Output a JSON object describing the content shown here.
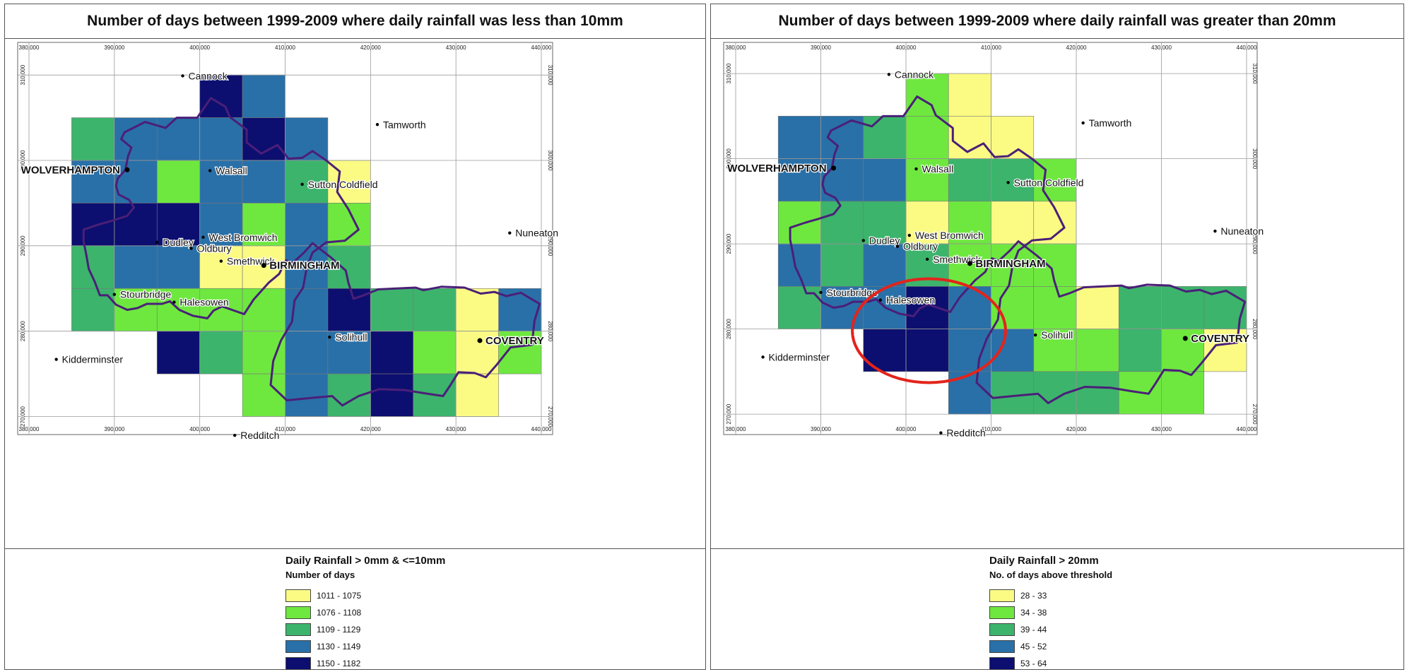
{
  "panels": [
    {
      "title": "Number of days between 1999-2009 where daily rainfall was less than 10mm",
      "legend": {
        "title": "Daily Rainfall > 0mm & <=10mm",
        "subtitle": "Number of days",
        "classes": [
          {
            "label": "1011 - 1075",
            "color": "#fbfb84"
          },
          {
            "label": "1076 - 1108",
            "color": "#6ee83f"
          },
          {
            "label": "1109 - 1129",
            "color": "#3cb46c"
          },
          {
            "label": "1130 - 1149",
            "color": "#2970a8"
          },
          {
            "label": "1150 - 1182",
            "color": "#0c0f6f"
          }
        ]
      },
      "cells": [
        {
          "e": 400,
          "n": 305,
          "c": 4
        },
        {
          "e": 405,
          "n": 305,
          "c": 3
        },
        {
          "e": 385,
          "n": 300,
          "c": 2
        },
        {
          "e": 390,
          "n": 300,
          "c": 3
        },
        {
          "e": 395,
          "n": 300,
          "c": 3
        },
        {
          "e": 400,
          "n": 300,
          "c": 3
        },
        {
          "e": 405,
          "n": 300,
          "c": 4
        },
        {
          "e": 410,
          "n": 300,
          "c": 3
        },
        {
          "e": 385,
          "n": 295,
          "c": 3
        },
        {
          "e": 390,
          "n": 295,
          "c": 3
        },
        {
          "e": 395,
          "n": 295,
          "c": 1
        },
        {
          "e": 400,
          "n": 295,
          "c": 3
        },
        {
          "e": 405,
          "n": 295,
          "c": 3
        },
        {
          "e": 410,
          "n": 295,
          "c": 2
        },
        {
          "e": 415,
          "n": 295,
          "c": 0
        },
        {
          "e": 385,
          "n": 290,
          "c": 4
        },
        {
          "e": 390,
          "n": 290,
          "c": 4
        },
        {
          "e": 395,
          "n": 290,
          "c": 4
        },
        {
          "e": 400,
          "n": 290,
          "c": 3
        },
        {
          "e": 405,
          "n": 290,
          "c": 1
        },
        {
          "e": 410,
          "n": 290,
          "c": 3
        },
        {
          "e": 415,
          "n": 290,
          "c": 1
        },
        {
          "e": 385,
          "n": 285,
          "c": 2
        },
        {
          "e": 390,
          "n": 285,
          "c": 3
        },
        {
          "e": 395,
          "n": 285,
          "c": 3
        },
        {
          "e": 400,
          "n": 285,
          "c": 0
        },
        {
          "e": 405,
          "n": 285,
          "c": 0
        },
        {
          "e": 410,
          "n": 285,
          "c": 3
        },
        {
          "e": 415,
          "n": 285,
          "c": 2
        },
        {
          "e": 385,
          "n": 280,
          "c": 2
        },
        {
          "e": 390,
          "n": 280,
          "c": 1
        },
        {
          "e": 395,
          "n": 280,
          "c": 1
        },
        {
          "e": 400,
          "n": 280,
          "c": 1
        },
        {
          "e": 405,
          "n": 280,
          "c": 1
        },
        {
          "e": 410,
          "n": 280,
          "c": 3
        },
        {
          "e": 415,
          "n": 280,
          "c": 4
        },
        {
          "e": 420,
          "n": 280,
          "c": 2
        },
        {
          "e": 425,
          "n": 280,
          "c": 2
        },
        {
          "e": 430,
          "n": 280,
          "c": 0
        },
        {
          "e": 435,
          "n": 280,
          "c": 3
        },
        {
          "e": 395,
          "n": 275,
          "c": 4
        },
        {
          "e": 400,
          "n": 275,
          "c": 2
        },
        {
          "e": 405,
          "n": 275,
          "c": 1
        },
        {
          "e": 410,
          "n": 275,
          "c": 3
        },
        {
          "e": 415,
          "n": 275,
          "c": 3
        },
        {
          "e": 420,
          "n": 275,
          "c": 4
        },
        {
          "e": 425,
          "n": 275,
          "c": 1
        },
        {
          "e": 430,
          "n": 275,
          "c": 0
        },
        {
          "e": 435,
          "n": 275,
          "c": 1
        },
        {
          "e": 405,
          "n": 270,
          "c": 1
        },
        {
          "e": 410,
          "n": 270,
          "c": 3
        },
        {
          "e": 415,
          "n": 270,
          "c": 2
        },
        {
          "e": 420,
          "n": 270,
          "c": 4
        },
        {
          "e": 425,
          "n": 270,
          "c": 2
        },
        {
          "e": 430,
          "n": 270,
          "c": 0
        }
      ],
      "highlight": false
    },
    {
      "title": "Number of days between 1999-2009 where daily rainfall was greater than 20mm",
      "legend": {
        "title": "Daily Rainfall > 20mm",
        "subtitle": "No. of days above threshold",
        "classes": [
          {
            "label": "28 - 33",
            "color": "#fbfb84"
          },
          {
            "label": "34 - 38",
            "color": "#6ee83f"
          },
          {
            "label": "39 - 44",
            "color": "#3cb46c"
          },
          {
            "label": "45 - 52",
            "color": "#2970a8"
          },
          {
            "label": "53 - 64",
            "color": "#0c0f6f"
          }
        ]
      },
      "cells": [
        {
          "e": 400,
          "n": 305,
          "c": 1
        },
        {
          "e": 405,
          "n": 305,
          "c": 0
        },
        {
          "e": 385,
          "n": 300,
          "c": 3
        },
        {
          "e": 390,
          "n": 300,
          "c": 3
        },
        {
          "e": 395,
          "n": 300,
          "c": 2
        },
        {
          "e": 400,
          "n": 300,
          "c": 1
        },
        {
          "e": 405,
          "n": 300,
          "c": 0
        },
        {
          "e": 410,
          "n": 300,
          "c": 0
        },
        {
          "e": 385,
          "n": 295,
          "c": 3
        },
        {
          "e": 390,
          "n": 295,
          "c": 3
        },
        {
          "e": 395,
          "n": 295,
          "c": 3
        },
        {
          "e": 400,
          "n": 295,
          "c": 1
        },
        {
          "e": 405,
          "n": 295,
          "c": 2
        },
        {
          "e": 410,
          "n": 295,
          "c": 2
        },
        {
          "e": 415,
          "n": 295,
          "c": 1
        },
        {
          "e": 385,
          "n": 290,
          "c": 1
        },
        {
          "e": 390,
          "n": 290,
          "c": 2
        },
        {
          "e": 395,
          "n": 290,
          "c": 2
        },
        {
          "e": 400,
          "n": 290,
          "c": 0
        },
        {
          "e": 405,
          "n": 290,
          "c": 1
        },
        {
          "e": 410,
          "n": 290,
          "c": 0
        },
        {
          "e": 415,
          "n": 290,
          "c": 0
        },
        {
          "e": 385,
          "n": 285,
          "c": 3
        },
        {
          "e": 390,
          "n": 285,
          "c": 2
        },
        {
          "e": 395,
          "n": 285,
          "c": 3
        },
        {
          "e": 400,
          "n": 285,
          "c": 2
        },
        {
          "e": 405,
          "n": 285,
          "c": 1
        },
        {
          "e": 410,
          "n": 285,
          "c": 1
        },
        {
          "e": 415,
          "n": 285,
          "c": 1
        },
        {
          "e": 385,
          "n": 280,
          "c": 2
        },
        {
          "e": 390,
          "n": 280,
          "c": 3
        },
        {
          "e": 395,
          "n": 280,
          "c": 3
        },
        {
          "e": 400,
          "n": 280,
          "c": 4
        },
        {
          "e": 405,
          "n": 280,
          "c": 3
        },
        {
          "e": 410,
          "n": 280,
          "c": 1
        },
        {
          "e": 415,
          "n": 280,
          "c": 1
        },
        {
          "e": 420,
          "n": 280,
          "c": 0
        },
        {
          "e": 425,
          "n": 280,
          "c": 2
        },
        {
          "e": 430,
          "n": 280,
          "c": 2
        },
        {
          "e": 435,
          "n": 280,
          "c": 2
        },
        {
          "e": 395,
          "n": 275,
          "c": 4
        },
        {
          "e": 400,
          "n": 275,
          "c": 4
        },
        {
          "e": 405,
          "n": 275,
          "c": 3
        },
        {
          "e": 410,
          "n": 275,
          "c": 3
        },
        {
          "e": 415,
          "n": 275,
          "c": 1
        },
        {
          "e": 420,
          "n": 275,
          "c": 1
        },
        {
          "e": 425,
          "n": 275,
          "c": 2
        },
        {
          "e": 430,
          "n": 275,
          "c": 1
        },
        {
          "e": 435,
          "n": 275,
          "c": 0
        },
        {
          "e": 405,
          "n": 270,
          "c": 3
        },
        {
          "e": 410,
          "n": 270,
          "c": 2
        },
        {
          "e": 415,
          "n": 270,
          "c": 2
        },
        {
          "e": 420,
          "n": 270,
          "c": 2
        },
        {
          "e": 425,
          "n": 270,
          "c": 1
        },
        {
          "e": 430,
          "n": 270,
          "c": 1
        }
      ],
      "highlight": true
    }
  ],
  "axes": {
    "eastings": [
      "380,000",
      "390,000",
      "400,000",
      "410,000",
      "420,000",
      "430,000",
      "440,000"
    ],
    "northings": [
      "310,000",
      "300,000",
      "290,000",
      "280,000",
      "270,000"
    ]
  },
  "places": [
    {
      "name": "Cannock",
      "e": 398.0,
      "n": 309.9,
      "bold": false
    },
    {
      "name": "Tamworth",
      "e": 420.8,
      "n": 304.2,
      "bold": false
    },
    {
      "name": "WOLVERHAMPTON",
      "e": 391.5,
      "n": 298.9,
      "bold": true
    },
    {
      "name": "Walsall",
      "e": 401.2,
      "n": 298.8,
      "bold": false
    },
    {
      "name": "Sutton Coldfield",
      "e": 412.0,
      "n": 297.2,
      "bold": false
    },
    {
      "name": "Nuneaton",
      "e": 436.3,
      "n": 291.5,
      "bold": false
    },
    {
      "name": "Dudley",
      "e": 395.0,
      "n": 290.4,
      "bold": false
    },
    {
      "name": "West Bromwich",
      "e": 400.4,
      "n": 291.0,
      "bold": false
    },
    {
      "name": "Oldbury",
      "e": 399.0,
      "n": 289.7,
      "bold": false
    },
    {
      "name": "Smethwick",
      "e": 402.5,
      "n": 288.2,
      "bold": false
    },
    {
      "name": "BIRMINGHAM",
      "e": 407.5,
      "n": 287.7,
      "bold": true
    },
    {
      "name": "Stourbridge",
      "e": 390.0,
      "n": 284.3,
      "bold": false
    },
    {
      "name": "Halesowen",
      "e": 397.0,
      "n": 283.4,
      "bold": false
    },
    {
      "name": "Solihull",
      "e": 415.2,
      "n": 279.3,
      "bold": false
    },
    {
      "name": "COVENTRY",
      "e": 432.8,
      "n": 278.9,
      "bold": true
    },
    {
      "name": "Kidderminster",
      "e": 383.2,
      "n": 276.7,
      "bold": false
    },
    {
      "name": "Redditch",
      "e": 404.1,
      "n": 267.8,
      "bold": false
    }
  ]
}
